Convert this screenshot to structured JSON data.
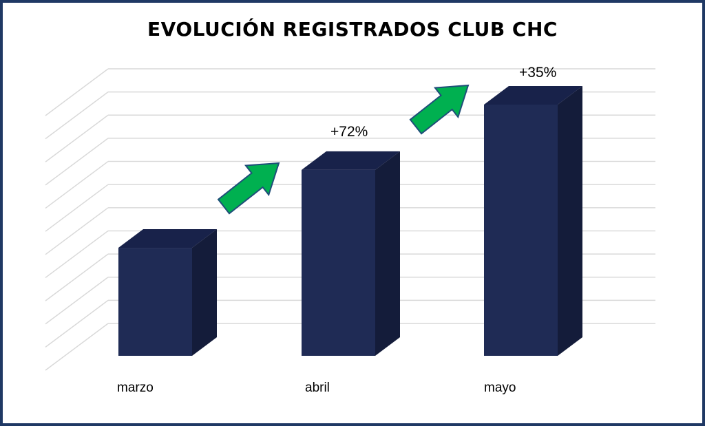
{
  "chart_data": {
    "type": "bar",
    "title": "EVOLUCIÓN REGISTRADOS CLUB CHC",
    "categories": [
      "marzo",
      "abril",
      "mayo"
    ],
    "values": [
      43,
      74,
      100
    ],
    "ylim": [
      0,
      130
    ],
    "grid": true,
    "three_d": true,
    "annotations": [
      {
        "between": [
          "marzo",
          "abril"
        ],
        "text": "+72%"
      },
      {
        "between": [
          "abril",
          "mayo"
        ],
        "text": "+35%"
      }
    ],
    "colors": {
      "bar_front": "#1f2b55",
      "bar_side": "#141c3a",
      "bar_top": "#18224a",
      "arrow": "#00b050",
      "arrow_stroke": "#1f4e79",
      "grid": "#d9d9d9",
      "frame": "#1f3864"
    }
  }
}
